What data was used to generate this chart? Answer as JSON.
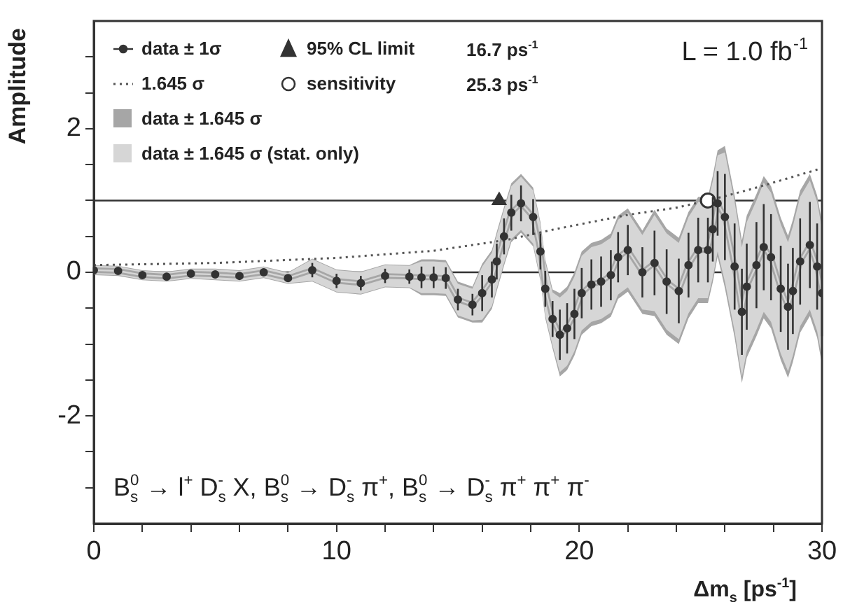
{
  "chart_data": {
    "type": "scatter",
    "xlabel": "Δm$_{s}$ [ps$^{-1}$]",
    "ylabel": "Amplitude",
    "xlim": [
      0,
      30
    ],
    "ylim": [
      -3.5,
      3.5
    ],
    "xticks": [
      0,
      {
        "value": 2,
        "label": null
      },
      {
        "value": 4,
        "label": null
      },
      {
        "value": 6,
        "label": null
      },
      {
        "value": 8,
        "label": null
      },
      10,
      {
        "value": 12,
        "label": null
      },
      {
        "value": 14,
        "label": null
      },
      {
        "value": 16,
        "label": null
      },
      {
        "value": 18,
        "label": null
      },
      20,
      {
        "value": 22,
        "label": null
      },
      {
        "value": 24,
        "label": null
      },
      {
        "value": 26,
        "label": null
      },
      {
        "value": 28,
        "label": null
      },
      30
    ],
    "yticks": [
      {
        "value": -3,
        "label": null
      },
      {
        "value": -2.5,
        "label": null
      },
      -2,
      {
        "value": -1.5,
        "label": null
      },
      {
        "value": -1,
        "label": null
      },
      {
        "value": -0.5,
        "label": null
      },
      0,
      {
        "value": 0.5,
        "label": null
      },
      {
        "value": 1,
        "label": null
      },
      {
        "value": 1.5,
        "label": null
      },
      2,
      {
        "value": 2.5,
        "label": null
      },
      {
        "value": 3,
        "label": null
      }
    ],
    "grid": false,
    "legend": "top left",
    "ref_lines": [
      {
        "axis": "y",
        "value": 0,
        "color": "#333333"
      },
      {
        "axis": "y",
        "value": 1,
        "color": "#333333"
      }
    ],
    "annotations": [
      "16.7 ps$^{-1}$",
      "25.3 ps$^{-1}$",
      "L = 1.0 fb$^{-1}$",
      "B$_{s}$$^{0}$ → l$^{+}$ D$_{s}$$^{-}$ X, B$_{s}$$^{0}$ → D$_{s}$$^{-}$ π$^{+}$, B$_{s}$$^{0}$ → D$_{s}$$^{-}$ π$^{+}$ π$^{+}$ π$^{-}$"
    ],
    "series": [
      {
        "name": "data ± 1σ",
        "marker": "circle",
        "color": "#333333",
        "x": [
          0,
          1,
          2,
          3,
          4,
          5,
          6,
          7,
          8,
          9,
          10,
          11,
          12,
          13,
          13.5,
          14,
          14.5,
          15,
          15.6,
          16,
          16.4,
          16.6,
          16.9,
          17.2,
          17.6,
          18.1,
          18.4,
          18.6,
          18.9,
          19.2,
          19.5,
          19.8,
          20.1,
          20.5,
          20.9,
          21.3,
          21.6,
          22,
          22.6,
          23.1,
          23.6,
          24.1,
          24.5,
          24.9,
          25.3,
          25.5,
          25.7,
          26,
          26.4,
          26.7,
          26.9,
          27.3,
          27.6,
          27.9,
          28.3,
          28.6,
          28.8,
          29.1,
          29.5,
          29.8,
          30
        ],
        "values": [
          0.03,
          0.02,
          -0.04,
          -0.06,
          -0.02,
          -0.03,
          -0.05,
          0,
          -0.08,
          0.03,
          -0.12,
          -0.15,
          -0.05,
          -0.06,
          -0.07,
          -0.07,
          -0.08,
          -0.38,
          -0.45,
          -0.29,
          -0.1,
          0.15,
          0.5,
          0.83,
          0.96,
          0.77,
          0.29,
          -0.23,
          -0.65,
          -0.87,
          -0.78,
          -0.58,
          -0.29,
          -0.17,
          -0.13,
          -0.04,
          0.21,
          0.31,
          0,
          0.13,
          -0.13,
          -0.26,
          0.1,
          0.31,
          0.31,
          0.6,
          0.96,
          0.77,
          0.08,
          -0.55,
          -0.2,
          0.1,
          0.35,
          0.21,
          -0.23,
          -0.48,
          -0.26,
          0.15,
          0.38,
          0.08,
          -0.29
        ],
        "errors": [
          0.04,
          0.04,
          0.04,
          0.04,
          0.04,
          0.05,
          0.05,
          0.05,
          0.05,
          0.1,
          0.1,
          0.1,
          0.1,
          0.1,
          0.15,
          0.15,
          0.15,
          0.15,
          0.15,
          0.25,
          0.25,
          0.25,
          0.25,
          0.25,
          0.25,
          0.25,
          0.25,
          0.25,
          0.25,
          0.35,
          0.35,
          0.35,
          0.35,
          0.35,
          0.35,
          0.35,
          0.35,
          0.35,
          0.35,
          0.45,
          0.45,
          0.45,
          0.45,
          0.45,
          0.45,
          0.45,
          0.45,
          0.6,
          0.6,
          0.6,
          0.6,
          0.6,
          0.6,
          0.6,
          0.6,
          0.6,
          0.6,
          0.6,
          0.6,
          0.6,
          0.6
        ]
      },
      {
        "name": "1.645 σ",
        "type": "line",
        "marker": "none",
        "line_style": "dotted",
        "color": "#555555",
        "x": [
          0,
          5,
          10,
          14,
          17,
          19,
          22,
          24,
          25.3,
          27,
          30
        ],
        "values": [
          0.1,
          0.13,
          0.2,
          0.3,
          0.45,
          0.6,
          0.8,
          0.9,
          1,
          1.15,
          1.45
        ]
      },
      {
        "name": "data ± 1.645 σ",
        "type": "line",
        "marker": "none",
        "color": "#a6a6a6",
        "x": [
          0,
          1,
          2,
          3,
          4,
          5,
          6,
          7,
          8,
          9,
          10,
          11,
          12,
          13,
          13.5,
          14,
          14.5,
          15,
          15.6,
          16,
          16.4,
          16.6,
          16.9,
          17.2,
          17.6,
          18.1,
          18.4,
          18.6,
          18.9,
          19.2,
          19.5,
          19.8,
          20.1,
          20.5,
          20.9,
          21.3,
          21.6,
          22,
          22.6,
          23.1,
          23.6,
          24.1,
          24.5,
          24.9,
          25.3,
          25.5,
          25.7,
          26,
          26.4,
          26.7,
          26.9,
          27.3,
          27.6,
          27.9,
          28.3,
          28.6,
          28.8,
          29.1,
          29.5,
          29.8,
          30
        ],
        "values": [
          0.03,
          0.02,
          -0.04,
          -0.06,
          -0.02,
          -0.03,
          -0.05,
          0,
          -0.08,
          0.03,
          -0.12,
          -0.15,
          -0.05,
          -0.06,
          -0.07,
          -0.07,
          -0.08,
          -0.38,
          -0.45,
          -0.29,
          -0.1,
          0.15,
          0.5,
          0.83,
          0.96,
          0.77,
          0.29,
          -0.23,
          -0.65,
          -0.87,
          -0.78,
          -0.58,
          -0.29,
          -0.17,
          -0.13,
          -0.04,
          0.21,
          0.31,
          0,
          0.13,
          -0.13,
          -0.26,
          0.1,
          0.31,
          0.31,
          0.6,
          0.96,
          0.77,
          0.08,
          -0.55,
          -0.2,
          0.1,
          0.35,
          0.21,
          -0.23,
          -0.48,
          -0.26,
          0.15,
          0.38,
          0.08,
          -0.29
        ],
        "upper": [
          0.1,
          0.09,
          0.03,
          0.01,
          0.05,
          0.05,
          0.03,
          0.08,
          0,
          0.19,
          0.04,
          0.01,
          0.11,
          0.1,
          0.18,
          0.18,
          0.17,
          -0.13,
          -0.2,
          0.12,
          0.31,
          0.56,
          0.91,
          1.24,
          1.37,
          1.18,
          0.7,
          0.18,
          -0.24,
          -0.29,
          -0.2,
          0,
          0.29,
          0.41,
          0.45,
          0.54,
          0.79,
          0.89,
          0.58,
          0.87,
          0.61,
          0.48,
          0.84,
          1.05,
          1.05,
          1.34,
          1.7,
          1.76,
          1.07,
          0.44,
          0.79,
          1.09,
          1.34,
          1.2,
          0.76,
          0.51,
          0.73,
          1.14,
          1.37,
          1.07,
          0.7
        ],
        "lower": [
          -0.04,
          -0.05,
          -0.11,
          -0.13,
          -0.09,
          -0.11,
          -0.13,
          -0.08,
          -0.16,
          -0.13,
          -0.28,
          -0.31,
          -0.21,
          -0.22,
          -0.32,
          -0.32,
          -0.33,
          -0.63,
          -0.7,
          -0.7,
          -0.51,
          -0.26,
          0.09,
          0.42,
          0.55,
          0.36,
          -0.12,
          -0.64,
          -1.06,
          -1.45,
          -1.36,
          -1.16,
          -0.87,
          -0.75,
          -0.71,
          -0.62,
          -0.37,
          -0.27,
          -0.58,
          -0.61,
          -0.87,
          -1,
          -0.64,
          -0.43,
          -0.43,
          -0.14,
          0.22,
          -0.22,
          -0.91,
          -1.54,
          -1.19,
          -0.89,
          -0.64,
          -0.78,
          -1.22,
          -1.47,
          -1.25,
          -0.84,
          -0.61,
          -0.91,
          -1.28
        ]
      },
      {
        "name": "data ± 1.645 σ (stat. only)",
        "type": "line",
        "marker": "none",
        "color": "#d6d6d6",
        "x": [
          0,
          1,
          2,
          3,
          4,
          5,
          6,
          7,
          8,
          9,
          10,
          11,
          12,
          13,
          13.5,
          14,
          14.5,
          15,
          15.6,
          16,
          16.4,
          16.6,
          16.9,
          17.2,
          17.6,
          18.1,
          18.4,
          18.6,
          18.9,
          19.2,
          19.5,
          19.8,
          20.1,
          20.5,
          20.9,
          21.3,
          21.6,
          22,
          22.6,
          23.1,
          23.6,
          24.1,
          24.5,
          24.9,
          25.3,
          25.5,
          25.7,
          26,
          26.4,
          26.7,
          26.9,
          27.3,
          27.6,
          27.9,
          28.3,
          28.6,
          28.8,
          29.1,
          29.5,
          29.8,
          30
        ],
        "values": [
          0.03,
          0.02,
          -0.04,
          -0.06,
          -0.02,
          -0.03,
          -0.05,
          0,
          -0.08,
          0.03,
          -0.12,
          -0.15,
          -0.05,
          -0.06,
          -0.07,
          -0.07,
          -0.08,
          -0.38,
          -0.45,
          -0.29,
          -0.1,
          0.15,
          0.5,
          0.83,
          0.96,
          0.77,
          0.29,
          -0.23,
          -0.65,
          -0.87,
          -0.78,
          -0.58,
          -0.29,
          -0.17,
          -0.13,
          -0.04,
          0.21,
          0.31,
          0,
          0.13,
          -0.13,
          -0.26,
          0.1,
          0.31,
          0.31,
          0.6,
          0.96,
          0.77,
          0.08,
          -0.55,
          -0.2,
          0.1,
          0.35,
          0.21,
          -0.23,
          -0.48,
          -0.26,
          0.15,
          0.38,
          0.08,
          -0.29
        ],
        "upper": [
          0.09,
          0.08,
          0.02,
          0,
          0.04,
          0.04,
          0.02,
          0.07,
          -0.01,
          0.18,
          0.03,
          0,
          0.1,
          0.09,
          0.15,
          0.15,
          0.14,
          -0.16,
          -0.23,
          0.08,
          0.27,
          0.52,
          0.87,
          1.2,
          1.33,
          1.14,
          0.66,
          0.14,
          -0.28,
          -0.35,
          -0.26,
          -0.06,
          0.23,
          0.35,
          0.39,
          0.48,
          0.73,
          0.83,
          0.52,
          0.8,
          0.54,
          0.41,
          0.77,
          0.98,
          0.98,
          1.27,
          1.63,
          1.67,
          0.98,
          0.35,
          0.7,
          1,
          1.25,
          1.11,
          0.67,
          0.42,
          0.64,
          1.05,
          1.28,
          0.98,
          0.61
        ],
        "lower": [
          -0.03,
          -0.04,
          -0.1,
          -0.12,
          -0.08,
          -0.1,
          -0.12,
          -0.07,
          -0.15,
          -0.12,
          -0.27,
          -0.3,
          -0.2,
          -0.21,
          -0.29,
          -0.29,
          -0.3,
          -0.6,
          -0.67,
          -0.66,
          -0.47,
          -0.22,
          0.13,
          0.46,
          0.59,
          0.4,
          -0.08,
          -0.6,
          -1.02,
          -1.39,
          -1.3,
          -1.1,
          -0.81,
          -0.69,
          -0.65,
          -0.56,
          -0.31,
          -0.21,
          -0.52,
          -0.54,
          -0.8,
          -0.93,
          -0.57,
          -0.36,
          -0.36,
          -0.07,
          0.29,
          -0.13,
          -0.82,
          -1.45,
          -1.1,
          -0.8,
          -0.55,
          -0.69,
          -1.13,
          -1.38,
          -1.16,
          -0.75,
          -0.52,
          -0.82,
          -1.19
        ]
      },
      {
        "name": "95% CL limit",
        "marker": "triangle",
        "color": "#333333",
        "x": [
          16.7
        ],
        "values": [
          1
        ]
      },
      {
        "name": "sensitivity",
        "marker": "circle",
        "color": "#333333",
        "x": [
          25.3
        ],
        "values": [
          1
        ]
      }
    ]
  }
}
